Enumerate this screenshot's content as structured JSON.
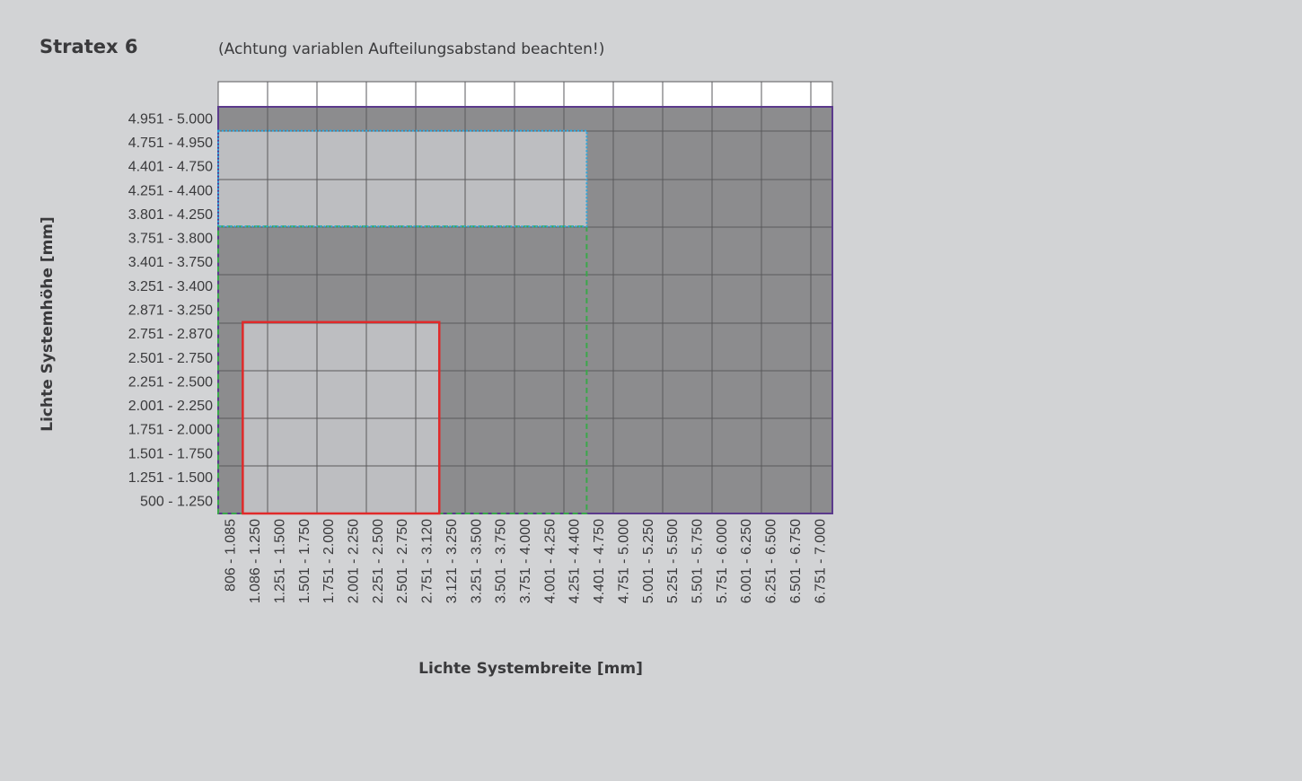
{
  "title": "Stratex 6",
  "note": "(Achtung variablen Aufteilungsabstand beachten!)",
  "chart_data": {
    "type": "heatmap",
    "xlabel": "Lichte Systembreite [mm]",
    "ylabel": "Lichte Systemhöhe [mm]",
    "x_ranges": [
      "806 - 1.085",
      "1.086 - 1.250",
      "1.251 - 1.500",
      "1.501 - 1.750",
      "1.751 - 2.000",
      "2.001 - 2.250",
      "2.251 - 2.500",
      "2.501 - 2.750",
      "2.751 - 3.120",
      "3.121 - 3.250",
      "3.251 - 3.500",
      "3.501 - 3.750",
      "3.751 - 4.000",
      "4.001 - 4.250",
      "4.251 - 4.400",
      "4.401 - 4.750",
      "4.751 - 5.000",
      "5.001 - 5.250",
      "5.251 - 5.500",
      "5.501 - 5.750",
      "5.751 - 6.000",
      "6.001 - 6.250",
      "6.251 - 6.500",
      "6.501 - 6.750",
      "6.751 - 7.000"
    ],
    "y_ranges": [
      "500 - 1.250",
      "1.251 - 1.500",
      "1.501 - 1.750",
      "1.751 - 2.000",
      "2.001 - 2.250",
      "2.251 - 2.500",
      "2.501 - 2.750",
      "2.751 - 2.870",
      "2.871 - 3.250",
      "3.251 - 3.400",
      "3.401 - 3.750",
      "3.751 - 3.800",
      "3.801 - 4.250",
      "4.251 - 4.400",
      "4.401 - 4.750",
      "4.751 - 4.950",
      "4.951 - 5.000"
    ],
    "colors": {
      "background": "#d2d3d5",
      "cell_dark": "#8c8c8e",
      "cell_light": "#bdbec1",
      "grid": "#5a5a5c",
      "header": "#ffffff",
      "purple": "#5b3a8c",
      "green": "#3aa84a",
      "blue": "#2aa6de",
      "red": "#e02a2a"
    },
    "regions": [
      {
        "color": "purple",
        "style": "solid",
        "x_range": [
          "806 - 1.085",
          "6.751 - 7.000"
        ],
        "y_range": [
          "500 - 1.250",
          "4.951 - 5.000"
        ]
      },
      {
        "color": "green",
        "style": "dashed",
        "x_range": [
          "806 - 1.085",
          "4.251 - 4.400"
        ],
        "y_range": [
          "500 - 1.250",
          "3.751 - 3.800"
        ]
      },
      {
        "color": "blue",
        "style": "dotted",
        "x_range": [
          "806 - 1.085",
          "4.251 - 4.400"
        ],
        "y_range": [
          "3.801 - 4.250",
          "4.751 - 4.950"
        ]
      },
      {
        "color": "red",
        "style": "solid",
        "x_range": [
          "1.086 - 1.250",
          "2.751 - 3.120"
        ],
        "y_range": [
          "500 - 1.250",
          "2.751 - 2.870"
        ]
      }
    ],
    "light_areas": [
      {
        "x_range": [
          "806 - 1.085",
          "4.251 - 4.400"
        ],
        "y_range": [
          "3.801 - 4.250",
          "4.751 - 4.950"
        ]
      },
      {
        "x_range": [
          "1.086 - 1.250",
          "2.751 - 3.120"
        ],
        "y_range": [
          "500 - 1.250",
          "2.751 - 2.870"
        ]
      }
    ]
  }
}
